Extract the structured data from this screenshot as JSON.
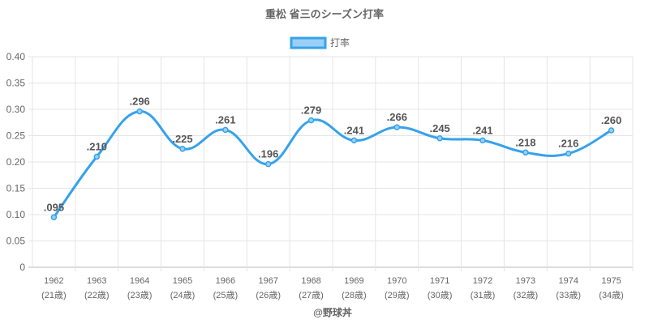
{
  "chart_data": {
    "type": "line",
    "title": "重松 省三のシーズン打率",
    "legend": {
      "label": "打率",
      "position": "top"
    },
    "categories": [
      "1962",
      "1963",
      "1964",
      "1965",
      "1966",
      "1967",
      "1968",
      "1969",
      "1970",
      "1971",
      "1972",
      "1973",
      "1974",
      "1975"
    ],
    "sublabels": [
      "(21歳)",
      "(22歳)",
      "(23歳)",
      "(24歳)",
      "(25歳)",
      "(26歳)",
      "(27歳)",
      "(28歳)",
      "(29歳)",
      "(30歳)",
      "(31歳)",
      "(32歳)",
      "(33歳)",
      "(34歳)"
    ],
    "values": [
      0.095,
      0.21,
      0.296,
      0.225,
      0.261,
      0.196,
      0.279,
      0.241,
      0.266,
      0.245,
      0.241,
      0.218,
      0.216,
      0.26
    ],
    "data_labels": [
      ".095",
      ".210",
      ".296",
      ".225",
      ".261",
      ".196",
      ".279",
      ".241",
      ".266",
      ".245",
      ".241",
      ".218",
      ".216",
      ".260"
    ],
    "yticks": [
      "0",
      "0.05",
      "0.10",
      "0.15",
      "0.20",
      "0.25",
      "0.30",
      "0.35",
      "0.40"
    ],
    "ylim": [
      0,
      0.4
    ],
    "grid": true,
    "xlabel": "",
    "ylabel": "",
    "line_color": "#36a2eb",
    "fill_color": "#9ad0f5"
  },
  "credit": "@野球丼"
}
